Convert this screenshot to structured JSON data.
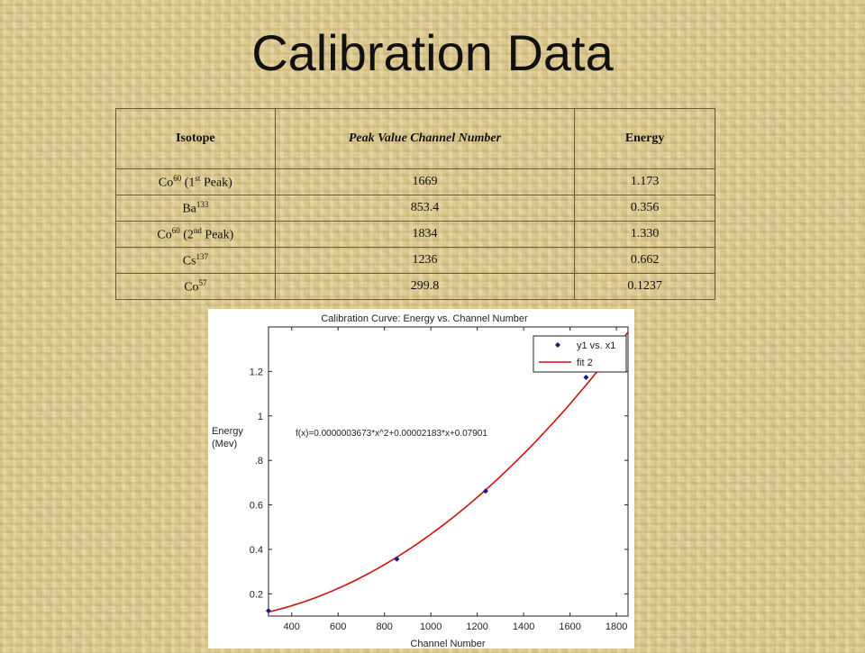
{
  "slide": {
    "title": "Calibration Data"
  },
  "table": {
    "headers": [
      "Isotope",
      "Peak Value Channel Number",
      "Energy"
    ],
    "rows": [
      {
        "isotope": "Co",
        "sup": "60",
        "note_pre": " (1",
        "note_sup": "st",
        "note_post": " Peak)",
        "channel": "1669",
        "energy": "1.173"
      },
      {
        "isotope": "Ba",
        "sup": "133",
        "note_pre": "",
        "note_sup": "",
        "note_post": "",
        "channel": "853.4",
        "energy": "0.356"
      },
      {
        "isotope": "Co",
        "sup": "60",
        "note_pre": " (2",
        "note_sup": "nd",
        "note_post": " Peak)",
        "channel": "1834",
        "energy": "1.330"
      },
      {
        "isotope": "Cs",
        "sup": "137",
        "note_pre": "",
        "note_sup": "",
        "note_post": "",
        "channel": "1236",
        "energy": "0.662"
      },
      {
        "isotope": "Co",
        "sup": "57",
        "note_pre": "",
        "note_sup": "",
        "note_post": "",
        "channel": "299.8",
        "energy": "0.1237"
      }
    ]
  },
  "chart_data": {
    "type": "scatter",
    "title": "Calibration Curve: Energy vs. Channel Number",
    "xlabel": "Channel Number",
    "ylabel": [
      "Energy",
      "(Mev)"
    ],
    "xlim": [
      300,
      1850
    ],
    "ylim": [
      0.1,
      1.4
    ],
    "x_ticks": [
      400,
      600,
      800,
      1000,
      1200,
      1400,
      1600,
      1800
    ],
    "x_tick_labels": [
      "400",
      "600",
      "800",
      "1000",
      "1200",
      "1400",
      "1600",
      "1800"
    ],
    "y_ticks": [
      0.2,
      0.4,
      0.6,
      0.8,
      1.0,
      1.2
    ],
    "y_tick_labels": [
      "0.2",
      "0.4",
      "0.6",
      ".8",
      "1",
      "1.2"
    ],
    "grid": false,
    "legend_position": "top-right",
    "series": [
      {
        "name": "y1 vs. x1",
        "kind": "points",
        "color": "#1a1a8c",
        "x": [
          1669,
          853.4,
          1834,
          1236,
          299.8
        ],
        "y": [
          1.173,
          0.356,
          1.33,
          0.662,
          0.1237
        ]
      },
      {
        "name": "fit 2",
        "kind": "curve",
        "color": "#cc1111",
        "coefficients": [
          3.673e-07,
          2.183e-05,
          0.07901
        ]
      }
    ],
    "annotation": "f(x)=0.0000003673*x^2+0.00002183*x+0.07901"
  }
}
